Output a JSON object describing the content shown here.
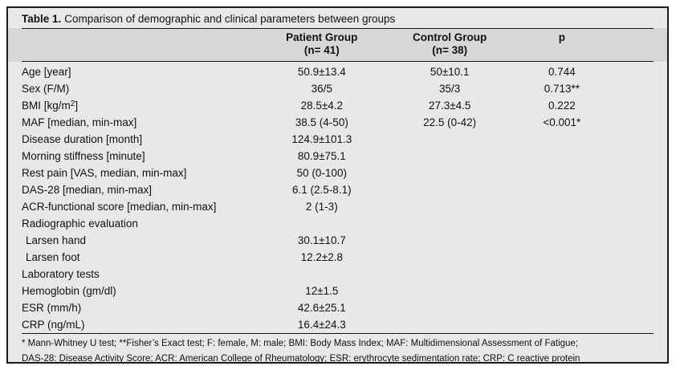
{
  "table": {
    "title": {
      "label": "Table 1.",
      "text": "Comparison of demographic and clinical parameters between groups"
    },
    "columns": [
      {
        "title": "Patient Group",
        "subtitle": "(n= 41)"
      },
      {
        "title": "Control Group",
        "subtitle": "(n= 38)"
      },
      {
        "title": "p",
        "subtitle": ""
      }
    ],
    "rows": [
      {
        "label": "Age [year]",
        "patient": "50.9±13.4",
        "control": "50±10.1",
        "p": "0.744"
      },
      {
        "label": "Sex (F/M)",
        "patient": "36/5",
        "control": "35/3",
        "p": "0.713**"
      },
      {
        "label_parts": [
          {
            "t": "BMI [kg/m"
          },
          {
            "t": "2",
            "sup": true
          },
          {
            "t": "]"
          }
        ],
        "patient": "28.5±4.2",
        "control": "27.3±4.5",
        "p": "0.222"
      },
      {
        "label": "MAF [median, min-max]",
        "patient": "38.5 (4-50)",
        "control": "22.5 (0-42)",
        "p": "<0.001*"
      },
      {
        "label": "Disease duration [month]",
        "patient": "124.9±101.3",
        "control": "",
        "p": ""
      },
      {
        "label": "Morning stiffness [minute]",
        "patient": "80.9±75.1",
        "control": "",
        "p": ""
      },
      {
        "label": "Rest pain [VAS, median, min-max]",
        "patient": "50 (0-100)",
        "control": "",
        "p": ""
      },
      {
        "label": "DAS-28 [median, min-max]",
        "patient": "6.1 (2.5-8.1)",
        "control": "",
        "p": ""
      },
      {
        "label": "ACR-functional score [median, min-max]",
        "patient": "2 (1-3)",
        "control": "",
        "p": ""
      },
      {
        "label": "Radiographic evaluation",
        "patient": "",
        "control": "",
        "p": ""
      },
      {
        "label": "Larsen hand",
        "indent": true,
        "patient": "30.1±10.7",
        "control": "",
        "p": ""
      },
      {
        "label": "Larsen foot",
        "indent": true,
        "patient": "12.2±2.8",
        "control": "",
        "p": ""
      },
      {
        "label": "Laboratory tests",
        "patient": "",
        "control": "",
        "p": ""
      },
      {
        "label": "Hemoglobin (gm/dl)",
        "patient": "12±1.5",
        "control": "",
        "p": ""
      },
      {
        "label": "ESR (mm/h)",
        "patient": "42.6±25.1",
        "control": "",
        "p": ""
      },
      {
        "label": "CRP (ng/mL)",
        "patient": "16.4±24.3",
        "control": "",
        "p": ""
      }
    ],
    "footnotes": [
      "* Mann-Whitney U test; **Fisher’s Exact test; F: female, M: male; BMI: Body Mass Index; MAF: Multidimensional Assessment of Fatigue;",
      "DAS-28: Disease Activity Score; ACR: American College of Rheumatology; ESR: erythrocyte sedimentation rate; CRP: C reactive protein"
    ]
  },
  "chart_data": {
    "type": "table",
    "title": "Table 1. Comparison of demographic and clinical parameters between groups",
    "columns": [
      "Parameter",
      "Patient Group (n= 41)",
      "Control Group (n= 38)",
      "p"
    ],
    "rows": [
      [
        "Age [year]",
        "50.9±13.4",
        "50±10.1",
        "0.744"
      ],
      [
        "Sex (F/M)",
        "36/5",
        "35/3",
        "0.713**"
      ],
      [
        "BMI [kg/m2]",
        "28.5±4.2",
        "27.3±4.5",
        "0.222"
      ],
      [
        "MAF [median, min-max]",
        "38.5 (4-50)",
        "22.5 (0-42)",
        "<0.001*"
      ],
      [
        "Disease duration [month]",
        "124.9±101.3",
        "",
        ""
      ],
      [
        "Morning stiffness [minute]",
        "80.9±75.1",
        "",
        ""
      ],
      [
        "Rest pain [VAS, median, min-max]",
        "50 (0-100)",
        "",
        ""
      ],
      [
        "DAS-28 [median, min-max]",
        "6.1 (2.5-8.1)",
        "",
        ""
      ],
      [
        "ACR-functional score [median, min-max]",
        "2 (1-3)",
        "",
        ""
      ],
      [
        "Radiographic evaluation",
        "",
        "",
        ""
      ],
      [
        "Larsen hand",
        "30.1±10.7",
        "",
        ""
      ],
      [
        "Larsen foot",
        "12.2±2.8",
        "",
        ""
      ],
      [
        "Laboratory tests",
        "",
        "",
        ""
      ],
      [
        "Hemoglobin (gm/dl)",
        "12±1.5",
        "",
        ""
      ],
      [
        "ESR (mm/h)",
        "42.6±25.1",
        "",
        ""
      ],
      [
        "CRP (ng/mL)",
        "16.4±24.3",
        "",
        ""
      ]
    ]
  },
  "colors": {
    "table_bg": "#e8e8e8",
    "header_band": "#d7d7d7",
    "border": "#1c1c1c",
    "rule": "#161616",
    "text": "#111111"
  }
}
